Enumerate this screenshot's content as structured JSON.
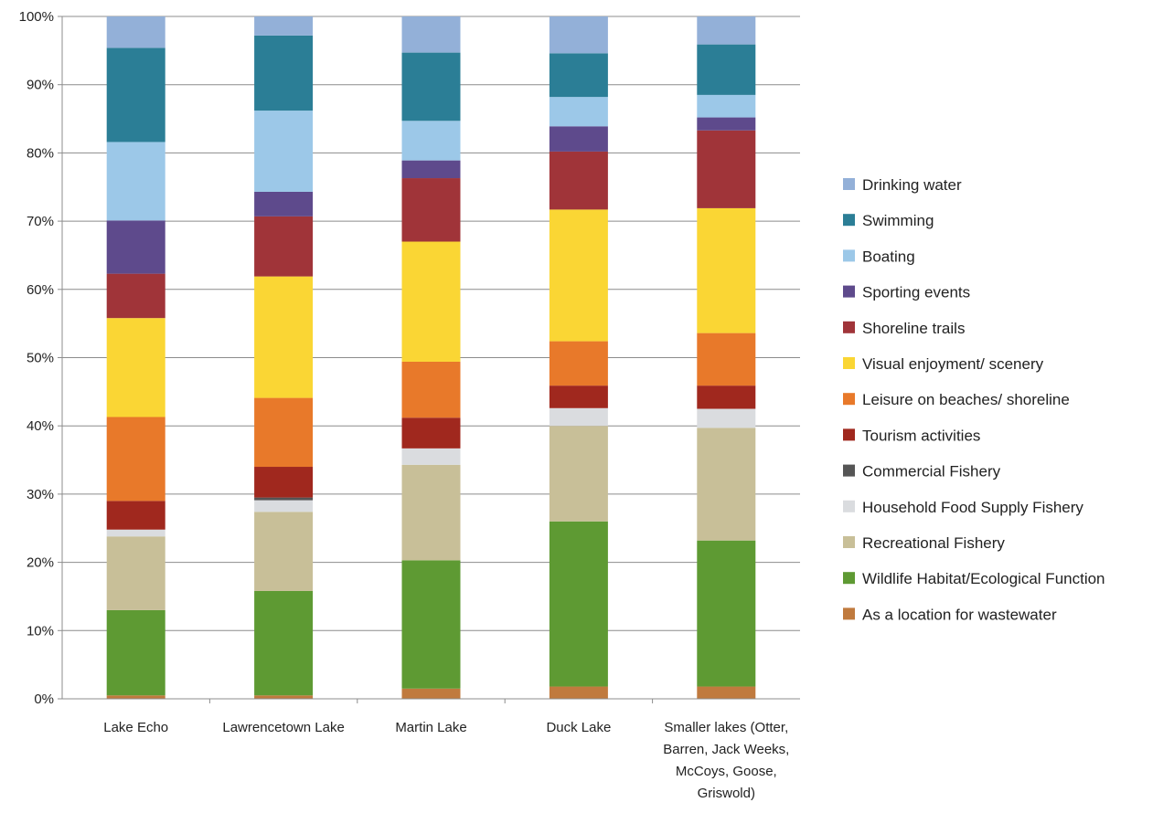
{
  "chart_data": {
    "type": "bar",
    "stacked": true,
    "percent_stacked": true,
    "title": "",
    "xlabel": "",
    "ylabel": "",
    "ylim": [
      0,
      100
    ],
    "y_ticks": [
      "0%",
      "10%",
      "20%",
      "30%",
      "40%",
      "50%",
      "60%",
      "70%",
      "80%",
      "90%",
      "100%"
    ],
    "grid": true,
    "legend_position": "right",
    "categories": [
      [
        "Lake Echo"
      ],
      [
        "Lawrencetown Lake"
      ],
      [
        "Martin Lake"
      ],
      [
        "Duck Lake"
      ],
      [
        "Smaller lakes (Otter,",
        "Barren, Jack Weeks,",
        "McCoys, Goose,",
        "Griswold)"
      ]
    ],
    "series": [
      {
        "name": "As a location for wastewater",
        "color": "#c07a3e",
        "values": [
          0.5,
          0.5,
          1.5,
          1.8,
          1.8
        ]
      },
      {
        "name": "Wildlife Habitat/Ecological Function",
        "color": "#5e9a33",
        "values": [
          12.5,
          15.3,
          18.8,
          24.2,
          21.4
        ]
      },
      {
        "name": "Recreational Fishery",
        "color": "#c8bf98",
        "values": [
          10.8,
          11.6,
          14.0,
          14.0,
          16.5
        ]
      },
      {
        "name": "Household Food Supply Fishery",
        "color": "#dadcdf",
        "values": [
          1.0,
          1.7,
          2.4,
          2.6,
          2.8
        ]
      },
      {
        "name": "Commercial Fishery",
        "color": "#555555",
        "values": [
          0.0,
          0.4,
          0.0,
          0.0,
          0.0
        ]
      },
      {
        "name": "Tourism activities",
        "color": "#a0281e",
        "values": [
          4.2,
          4.5,
          4.5,
          3.3,
          3.4
        ]
      },
      {
        "name": "Leisure on beaches/ shoreline",
        "color": "#e8792a",
        "values": [
          12.3,
          10.1,
          8.2,
          6.5,
          7.7
        ]
      },
      {
        "name": "Visual enjoyment/ scenery",
        "color": "#fad634",
        "values": [
          14.5,
          17.8,
          17.6,
          19.3,
          18.3
        ]
      },
      {
        "name": "Shoreline trails",
        "color": "#a03439",
        "values": [
          6.5,
          8.8,
          9.3,
          8.5,
          11.4
        ]
      },
      {
        "name": "Sporting events",
        "color": "#5e4a8c",
        "values": [
          7.8,
          3.6,
          2.6,
          3.7,
          1.9
        ]
      },
      {
        "name": "Boating",
        "color": "#9cc8e8",
        "values": [
          11.5,
          11.9,
          5.8,
          4.3,
          3.3
        ]
      },
      {
        "name": "Swimming",
        "color": "#2b7e96",
        "values": [
          13.8,
          11.0,
          10.0,
          6.4,
          7.4
        ]
      },
      {
        "name": "Drinking water",
        "color": "#93b0d8",
        "values": [
          4.6,
          2.8,
          5.3,
          5.4,
          4.1
        ]
      }
    ]
  }
}
